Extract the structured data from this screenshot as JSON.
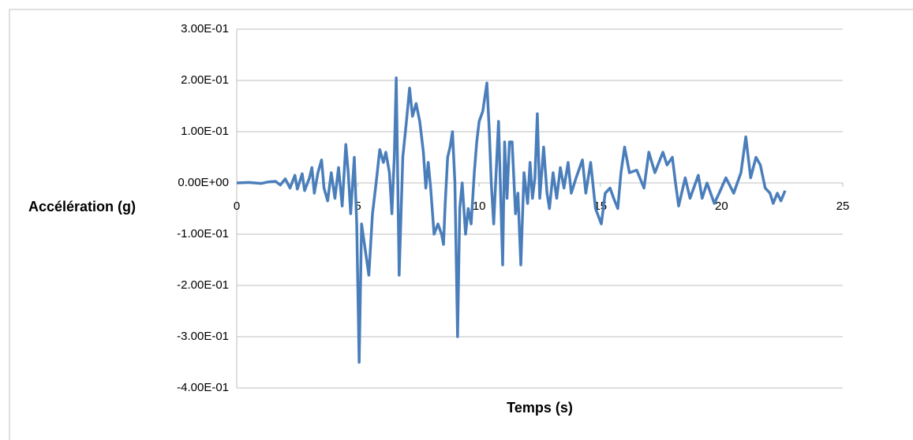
{
  "chart_data": {
    "type": "line",
    "x_label": "Temps (s)",
    "y_label": "Accélération (g)",
    "xlim": [
      0,
      25
    ],
    "xticks": [
      0,
      5,
      10,
      15,
      20,
      25
    ],
    "ylim": [
      -0.4,
      0.3
    ],
    "yticks": [
      {
        "value": -0.4,
        "label": "-4.00E-01"
      },
      {
        "value": -0.3,
        "label": "-3.00E-01"
      },
      {
        "value": -0.2,
        "label": "-2.00E-01"
      },
      {
        "value": -0.1,
        "label": "-1.00E-01"
      },
      {
        "value": 0,
        "label": "0.00E+00"
      },
      {
        "value": 0.1,
        "label": "1.00E-01"
      },
      {
        "value": 0.2,
        "label": "2.00E-01"
      },
      {
        "value": 0.3,
        "label": "3.00E-01"
      }
    ],
    "grid": true,
    "series": [
      {
        "color": "#4a7ebb",
        "x": [
          0,
          0.5,
          1,
          1.3,
          1.6,
          1.8,
          2.0,
          2.2,
          2.4,
          2.5,
          2.7,
          2.8,
          3.0,
          3.1,
          3.2,
          3.35,
          3.5,
          3.6,
          3.75,
          3.9,
          4.05,
          4.2,
          4.35,
          4.5,
          4.6,
          4.7,
          4.85,
          4.95,
          5.05,
          5.15,
          5.3,
          5.45,
          5.6,
          5.75,
          5.9,
          6.05,
          6.15,
          6.3,
          6.4,
          6.5,
          6.58,
          6.7,
          6.85,
          7.0,
          7.13,
          7.25,
          7.4,
          7.55,
          7.7,
          7.8,
          7.9,
          8.0,
          8.14,
          8.3,
          8.45,
          8.53,
          8.6,
          8.7,
          8.8,
          8.9,
          9.0,
          9.11,
          9.2,
          9.3,
          9.44,
          9.55,
          9.67,
          9.8,
          9.9,
          10.0,
          10.15,
          10.32,
          10.42,
          10.5,
          10.6,
          10.7,
          10.8,
          10.97,
          11.05,
          11.15,
          11.25,
          11.36,
          11.5,
          11.6,
          11.72,
          11.85,
          12.0,
          12.1,
          12.2,
          12.3,
          12.4,
          12.5,
          12.66,
          12.8,
          12.9,
          13.05,
          13.2,
          13.35,
          13.5,
          13.67,
          13.8,
          14.0,
          14.26,
          14.4,
          14.6,
          14.8,
          15.04,
          15.2,
          15.4,
          15.55,
          15.72,
          15.85,
          16.0,
          16.2,
          16.5,
          16.8,
          17.0,
          17.25,
          17.58,
          17.75,
          17.97,
          18.1,
          18.23,
          18.5,
          18.7,
          19.04,
          19.2,
          19.4,
          19.7,
          19.9,
          20.18,
          20.5,
          20.8,
          21.0,
          21.2,
          21.42,
          21.6,
          21.8,
          22.0,
          22.13,
          22.3,
          22.45,
          22.62
        ],
        "values": [
          0,
          0.001,
          -0.001,
          0.002,
          0.003,
          -0.004,
          0.008,
          -0.01,
          0.015,
          -0.012,
          0.018,
          -0.015,
          0.01,
          0.03,
          -0.02,
          0.02,
          0.045,
          -0.01,
          -0.035,
          0.02,
          -0.03,
          0.03,
          -0.045,
          0.075,
          0.02,
          -0.06,
          0.05,
          -0.08,
          -0.35,
          -0.08,
          -0.13,
          -0.18,
          -0.06,
          0.0,
          0.065,
          0.04,
          0.06,
          0.02,
          -0.06,
          0.05,
          0.205,
          -0.18,
          0.05,
          0.12,
          0.185,
          0.13,
          0.155,
          0.12,
          0.06,
          -0.01,
          0.04,
          -0.01,
          -0.1,
          -0.08,
          -0.1,
          -0.12,
          -0.04,
          0.05,
          0.07,
          0.1,
          0.0,
          -0.3,
          -0.05,
          0.0,
          -0.1,
          -0.05,
          -0.08,
          0.02,
          0.08,
          0.12,
          0.14,
          0.195,
          0.1,
          0.0,
          -0.08,
          0.02,
          0.12,
          -0.16,
          0.08,
          -0.03,
          0.08,
          0.08,
          -0.06,
          -0.02,
          -0.16,
          0.02,
          -0.04,
          0.04,
          -0.03,
          0.01,
          0.135,
          -0.03,
          0.07,
          -0.02,
          -0.05,
          0.02,
          -0.03,
          0.03,
          -0.01,
          0.04,
          -0.02,
          0.01,
          0.045,
          -0.02,
          0.04,
          -0.05,
          -0.08,
          -0.02,
          -0.01,
          -0.03,
          -0.05,
          0.02,
          0.07,
          0.02,
          0.025,
          -0.01,
          0.06,
          0.02,
          0.06,
          0.035,
          0.05,
          0.0,
          -0.045,
          0.01,
          -0.03,
          0.015,
          -0.03,
          0.0,
          -0.04,
          -0.02,
          0.01,
          -0.02,
          0.02,
          0.09,
          0.01,
          0.05,
          0.035,
          -0.01,
          -0.02,
          -0.04,
          -0.02,
          -0.035,
          -0.015
        ]
      }
    ]
  }
}
